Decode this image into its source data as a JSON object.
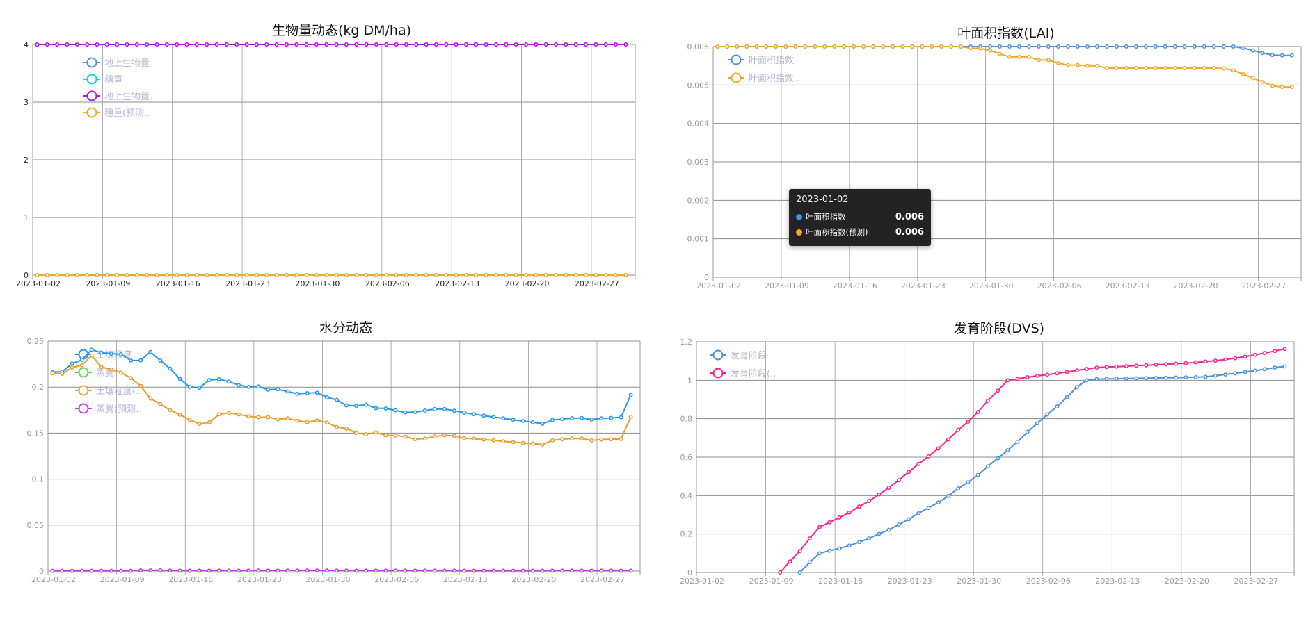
{
  "chart_data": [
    {
      "type": "line",
      "title": "生物量动态(kg DM/ha)",
      "ylim": [
        0,
        4
      ],
      "yticks": [
        0,
        1,
        2,
        3,
        4
      ],
      "xtick_labels": [
        "2023-01-02",
        "2023-01-09",
        "2023-01-16",
        "2023-01-23",
        "2023-01-30",
        "2023-02-06",
        "2023-02-13",
        "2023-02-20",
        "2023-02-27"
      ],
      "grid": true,
      "legend": "top-left",
      "series": [
        {
          "name": "地上生物量",
          "color": "#4a90e2",
          "values": [
            4,
            4,
            4,
            4,
            4,
            4,
            4,
            4,
            4,
            4,
            4,
            4,
            4,
            4,
            4,
            4,
            4,
            4,
            4,
            4,
            4,
            4,
            4,
            4,
            4,
            4,
            4,
            4,
            4,
            4,
            4,
            4,
            4,
            4,
            4,
            4,
            4,
            4,
            4,
            4,
            4,
            4,
            4,
            4,
            4,
            4,
            4,
            4,
            4,
            4,
            4,
            4,
            4,
            4,
            4,
            4,
            4,
            4,
            4,
            4
          ]
        },
        {
          "name": "穗重",
          "color": "#00d2ff",
          "values": [
            0,
            0,
            0,
            0,
            0,
            0,
            0,
            0,
            0,
            0,
            0,
            0,
            0,
            0,
            0,
            0,
            0,
            0,
            0,
            0,
            0,
            0,
            0,
            0,
            0,
            0,
            0,
            0,
            0,
            0,
            0,
            0,
            0,
            0,
            0,
            0,
            0,
            0,
            0,
            0,
            0,
            0,
            0,
            0,
            0,
            0,
            0,
            0,
            0,
            0,
            0,
            0,
            0,
            0,
            0,
            0,
            0,
            0,
            0,
            0
          ]
        },
        {
          "name": "地上生物量..",
          "color": "#b50fe0",
          "values": [
            4,
            4,
            4,
            4,
            4,
            4,
            4,
            4,
            4,
            4,
            4,
            4,
            4,
            4,
            4,
            4,
            4,
            4,
            4,
            4,
            4,
            4,
            4,
            4,
            4,
            4,
            4,
            4,
            4,
            4,
            4,
            4,
            4,
            4,
            4,
            4,
            4,
            4,
            4,
            4,
            4,
            4,
            4,
            4,
            4,
            4,
            4,
            4,
            4,
            4,
            4,
            4,
            4,
            4,
            4,
            4,
            4,
            4,
            4,
            4
          ]
        },
        {
          "name": "穗重(预测..",
          "color": "#f5a623",
          "values": [
            0,
            0,
            0,
            0,
            0,
            0,
            0,
            0,
            0,
            0,
            0,
            0,
            0,
            0,
            0,
            0,
            0,
            0,
            0,
            0,
            0,
            0,
            0,
            0,
            0,
            0,
            0,
            0,
            0,
            0,
            0,
            0,
            0,
            0,
            0,
            0,
            0,
            0,
            0,
            0,
            0,
            0,
            0,
            0,
            0,
            0,
            0,
            0,
            0,
            0,
            0,
            0,
            0,
            0,
            0,
            0,
            0,
            0,
            0,
            0
          ]
        }
      ]
    },
    {
      "type": "line",
      "title": "叶面积指数(LAI)",
      "ylim": [
        0,
        0.006
      ],
      "yticks": [
        0,
        0.001,
        0.002,
        0.003,
        0.004,
        0.005,
        0.006
      ],
      "xtick_labels": [
        "2023-01-02",
        "2023-01-09",
        "2023-01-16",
        "2023-01-23",
        "2023-01-30",
        "2023-02-06",
        "2023-02-13",
        "2023-02-20",
        "2023-02-27"
      ],
      "grid": true,
      "legend": "top-left",
      "series": [
        {
          "name": "叶面积指数",
          "color": "#4a90e2",
          "values": [
            0.006,
            0.006,
            0.006,
            0.006,
            0.006,
            0.006,
            0.006,
            0.006,
            0.006,
            0.006,
            0.006,
            0.006,
            0.006,
            0.006,
            0.006,
            0.006,
            0.006,
            0.006,
            0.006,
            0.006,
            0.006,
            0.006,
            0.006,
            0.006,
            0.006,
            0.006,
            0.006,
            0.006,
            0.006,
            0.006,
            0.006,
            0.006,
            0.006,
            0.006,
            0.006,
            0.006,
            0.006,
            0.006,
            0.006,
            0.006,
            0.006,
            0.006,
            0.006,
            0.006,
            0.006,
            0.006,
            0.006,
            0.006,
            0.006,
            0.006,
            0.006,
            0.006,
            0.006,
            0.006,
            0.00596,
            0.0059,
            0.00583,
            0.00578,
            0.00577,
            0.00577
          ]
        },
        {
          "name": "叶面积指数..",
          "color": "#f5a623",
          "values": [
            0.006,
            0.006,
            0.006,
            0.006,
            0.006,
            0.006,
            0.006,
            0.006,
            0.006,
            0.006,
            0.006,
            0.006,
            0.006,
            0.006,
            0.006,
            0.006,
            0.006,
            0.006,
            0.006,
            0.006,
            0.006,
            0.006,
            0.006,
            0.006,
            0.006,
            0.006,
            0.00596,
            0.00595,
            0.0059,
            0.00581,
            0.00573,
            0.00573,
            0.00573,
            0.00565,
            0.00565,
            0.00557,
            0.00552,
            0.00552,
            0.0055,
            0.0055,
            0.00544,
            0.00544,
            0.00544,
            0.00544,
            0.00544,
            0.00544,
            0.00544,
            0.00544,
            0.00544,
            0.00544,
            0.00544,
            0.00544,
            0.00543,
            0.00538,
            0.00528,
            0.00518,
            0.00508,
            0.00498,
            0.00495,
            0.00495
          ]
        }
      ]
    },
    {
      "type": "line",
      "title": "水分动态",
      "ylim": [
        0,
        0.25
      ],
      "yticks": [
        0,
        0.05,
        0.1,
        0.15,
        0.2,
        0.25
      ],
      "xtick_labels": [
        "2023-01-02",
        "2023-01-09",
        "2023-01-16",
        "2023-01-23",
        "2023-01-30",
        "2023-02-06",
        "2023-02-13",
        "2023-02-20",
        "2023-02-27"
      ],
      "grid": true,
      "legend": "top-left",
      "series": [
        {
          "name": "土壤湿度",
          "color": "#2196f3",
          "values": [
            0.2163,
            0.2168,
            0.2256,
            0.2296,
            0.2407,
            0.2374,
            0.2364,
            0.2357,
            0.2289,
            0.2291,
            0.2382,
            0.2289,
            0.2201,
            0.209,
            0.2002,
            0.1994,
            0.2077,
            0.2085,
            0.206,
            0.2022,
            0.2002,
            0.2007,
            0.1972,
            0.1977,
            0.1952,
            0.1927,
            0.1934,
            0.1939,
            0.1889,
            0.1861,
            0.1801,
            0.1796,
            0.1808,
            0.1771,
            0.1768,
            0.1748,
            0.1725,
            0.1728,
            0.1745,
            0.1761,
            0.1761,
            0.1743,
            0.1723,
            0.1705,
            0.169,
            0.1675,
            0.166,
            0.1645,
            0.1632,
            0.1617,
            0.1602,
            0.1642,
            0.1652,
            0.1662,
            0.1665,
            0.1647,
            0.166,
            0.1665,
            0.1672,
            0.1916
          ]
        },
        {
          "name": "蒸腾",
          "color": "#52d63a",
          "values": [
            0.0002,
            0.0002,
            0.0002,
            0.0002,
            0.0002,
            0.0002,
            0.0002,
            0.0002,
            0.0004,
            0.0006,
            0.0006,
            0.0006,
            0.0004,
            0.0003,
            0.0003,
            0.0003,
            0.0003,
            0.0003,
            0.0003,
            0.0003,
            0.0004,
            0.0004,
            0.0003,
            0.0003,
            0.0004,
            0.0004,
            0.0005,
            0.0005,
            0.0005,
            0.0004,
            0.0004,
            0.0003,
            0.0003,
            0.0003,
            0.0003,
            0.0003,
            0.0003,
            0.0003,
            0.0003,
            0.0003,
            0.0003,
            0.0003,
            0.0002,
            0.0002,
            0.0002,
            0.0002,
            0.0002,
            0.0002,
            0.0002,
            0.0002,
            0.0002,
            0.0003,
            0.0003,
            0.0003,
            0.0003,
            0.0003,
            0.0003,
            0.0003,
            0.0003,
            0.0003
          ]
        },
        {
          "name": "土壤湿度(..",
          "color": "#e89d2c",
          "values": [
            0.215,
            0.2145,
            0.2213,
            0.2238,
            0.2344,
            0.2218,
            0.2193,
            0.2158,
            0.2098,
            0.2012,
            0.1876,
            0.1816,
            0.175,
            0.17,
            0.1645,
            0.16,
            0.1617,
            0.1705,
            0.172,
            0.1703,
            0.1683,
            0.1673,
            0.1673,
            0.165,
            0.166,
            0.1635,
            0.162,
            0.1637,
            0.1615,
            0.1567,
            0.1549,
            0.1502,
            0.1487,
            0.1507,
            0.1476,
            0.1474,
            0.1461,
            0.1434,
            0.1441,
            0.1464,
            0.1476,
            0.1471,
            0.1444,
            0.1439,
            0.1429,
            0.1421,
            0.1411,
            0.1401,
            0.1393,
            0.1386,
            0.1376,
            0.1421,
            0.1434,
            0.1441,
            0.1441,
            0.1421,
            0.1431,
            0.1434,
            0.1436,
            0.1678
          ]
        },
        {
          "name": "蒸腾(预测..",
          "color": "#cc33ee",
          "values": [
            0.0003,
            0.0003,
            0.0003,
            0.0003,
            0.0003,
            0.0003,
            0.0003,
            0.0003,
            0.0003,
            0.0008,
            0.0008,
            0.0009,
            0.0006,
            0.0005,
            0.0005,
            0.0005,
            0.0005,
            0.0005,
            0.0005,
            0.0005,
            0.0006,
            0.0006,
            0.0005,
            0.0005,
            0.0006,
            0.0006,
            0.0007,
            0.0007,
            0.0007,
            0.0006,
            0.0006,
            0.0005,
            0.0005,
            0.0005,
            0.0005,
            0.0005,
            0.0005,
            0.0005,
            0.0005,
            0.0005,
            0.0005,
            0.0005,
            0.0004,
            0.0004,
            0.0004,
            0.0004,
            0.0004,
            0.0004,
            0.0004,
            0.0004,
            0.0004,
            0.0005,
            0.0005,
            0.0005,
            0.0005,
            0.0005,
            0.0005,
            0.0005,
            0.0005,
            0.0005
          ]
        }
      ]
    },
    {
      "type": "line",
      "title": "发育阶段(DVS)",
      "ylim": [
        0,
        1.2
      ],
      "yticks": [
        0,
        0.2,
        0.4,
        0.6,
        0.8,
        1,
        1.2
      ],
      "xtick_labels": [
        "2023-01-02",
        "2023-01-09",
        "2023-01-16",
        "2023-01-23",
        "2023-01-30",
        "2023-02-06",
        "2023-02-13",
        "2023-02-20",
        "2023-02-27"
      ],
      "grid": true,
      "legend": "top-left",
      "series": [
        {
          "name": "发育阶段",
          "color": "#4a90e2",
          "values": [
            null,
            null,
            null,
            null,
            null,
            null,
            null,
            null,
            null,
            null,
            0,
            0.053,
            0.1,
            0.113,
            0.125,
            0.14,
            0.158,
            0.177,
            0.201,
            0.222,
            0.249,
            0.277,
            0.308,
            0.336,
            0.364,
            0.398,
            0.437,
            0.469,
            0.507,
            0.552,
            0.594,
            0.636,
            0.68,
            0.731,
            0.776,
            0.822,
            0.863,
            0.912,
            0.964,
            1.0,
            1.006,
            1.007,
            1.008,
            1.009,
            1.01,
            1.011,
            1.012,
            1.013,
            1.014,
            1.015,
            1.016,
            1.018,
            1.024,
            1.03,
            1.036,
            1.043,
            1.05,
            1.058,
            1.066,
            1.072
          ]
        },
        {
          "name": "发育阶段(..",
          "color": "#ff1f8e",
          "values": [
            null,
            null,
            null,
            null,
            null,
            null,
            null,
            null,
            0,
            0.057,
            0.112,
            0.177,
            0.237,
            0.261,
            0.286,
            0.312,
            0.343,
            0.372,
            0.406,
            0.441,
            0.48,
            0.523,
            0.565,
            0.604,
            0.645,
            0.692,
            0.742,
            0.784,
            0.835,
            0.893,
            0.946,
            1.0,
            1.007,
            1.016,
            1.023,
            1.029,
            1.036,
            1.043,
            1.051,
            1.059,
            1.066,
            1.069,
            1.071,
            1.073,
            1.076,
            1.078,
            1.081,
            1.083,
            1.086,
            1.089,
            1.093,
            1.097,
            1.102,
            1.108,
            1.115,
            1.123,
            1.132,
            1.142,
            1.152,
            1.163
          ]
        }
      ]
    }
  ],
  "tooltip": {
    "date": "2023-01-02",
    "rows": [
      {
        "name": "叶面积指数",
        "value": "0.006",
        "color": "#4a90e2"
      },
      {
        "name": "叶面积指数(预测)",
        "value": "0.006",
        "color": "#f5a623"
      }
    ]
  }
}
